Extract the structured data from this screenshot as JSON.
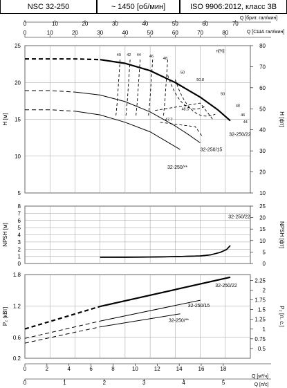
{
  "header": {
    "model": "NSC 32-250",
    "speed": "~ 1450 [об/мин]",
    "standard": "ISO 9906:2012, класс 3B"
  },
  "chart_data": [
    {
      "type": "line",
      "name": "top-secondary-axis",
      "axes": {
        "q_us_top": {
          "label": "Q [США гал/мин]",
          "range": [
            0,
            90
          ],
          "ticks": [
            0,
            10,
            20,
            30,
            40,
            50,
            60,
            70,
            80
          ]
        },
        "q_uk_top": {
          "label": "Q [брит. гал/мин]",
          "range": [
            0,
            75
          ],
          "ticks": [
            0,
            10,
            20,
            30,
            40,
            50,
            60,
            70
          ]
        }
      }
    },
    {
      "type": "line",
      "name": "head-curves",
      "xlabel": "",
      "ylabel": "H [м]",
      "ylabel_right": "H [фт]",
      "xlim": [
        0,
        90
      ],
      "ylim": [
        5,
        25
      ],
      "ylim_right": [
        10,
        80
      ],
      "yticks": [
        5,
        10,
        15,
        20,
        25
      ],
      "yticks_right": [
        10,
        20,
        30,
        40,
        50,
        60,
        70,
        80
      ],
      "series": [
        {
          "name": "32-250/22",
          "dashed_until": 30,
          "x": [
            0,
            20,
            30,
            40,
            50,
            60,
            70,
            77,
            82
          ],
          "y": [
            23.2,
            23.2,
            23.1,
            22.6,
            21.6,
            20.0,
            18.0,
            16.3,
            14.8
          ]
        },
        {
          "name": "32-250/15",
          "dashed_until": 20,
          "x": [
            0,
            10,
            20,
            30,
            40,
            50,
            60,
            65,
            70
          ],
          "y": [
            18.9,
            18.9,
            18.7,
            18.3,
            17.4,
            16.0,
            14.1,
            13.0,
            11.8
          ]
        },
        {
          "name": "32-250/**",
          "dashed_until": 20,
          "x": [
            0,
            10,
            20,
            30,
            40,
            50,
            60,
            62
          ],
          "y": [
            16.3,
            16.3,
            16.1,
            15.6,
            14.6,
            13.3,
            11.3,
            10.9
          ]
        }
      ],
      "efficiency_labels": [
        "40",
        "42",
        "44",
        "46",
        "48",
        "50",
        "50.8",
        "50",
        "48",
        "46",
        "44",
        "48.5",
        "47.7"
      ],
      "marker": "n[%]"
    },
    {
      "type": "line",
      "name": "npsh-curve",
      "ylabel": "NPSH [м]",
      "ylabel_right": "NPSH [фт]",
      "ylim": [
        0,
        8
      ],
      "yticks": [
        0,
        1,
        2,
        3,
        4,
        5,
        6,
        7,
        8
      ],
      "ylim_right": [
        0,
        25
      ],
      "yticks_right": [
        0,
        5,
        10,
        15,
        20,
        25
      ],
      "series": [
        {
          "name": "32-250/22",
          "x": [
            30,
            40,
            50,
            60,
            70,
            74,
            78,
            80.5,
            82
          ],
          "y": [
            0.87,
            0.88,
            0.9,
            0.95,
            1.05,
            1.2,
            1.55,
            1.95,
            2.5
          ]
        }
      ]
    },
    {
      "type": "line",
      "name": "power-curves",
      "ylabel": "P₂ [кВт]",
      "ylabel_right": "P₂ [л. с.]",
      "ylim": [
        0.2,
        1.8
      ],
      "yticks": [
        0.2,
        0.6,
        1.2,
        1.8
      ],
      "ylim_right": [
        0.25,
        2.4
      ],
      "yticks_right": [
        0.5,
        0.75,
        1.0,
        1.25,
        1.5,
        1.75,
        2.0,
        2.25
      ],
      "series": [
        {
          "name": "32-250/22",
          "dashed_until": 30,
          "x": [
            0,
            30,
            82
          ],
          "y": [
            0.76,
            1.19,
            1.75
          ]
        },
        {
          "name": "32-250/15",
          "dashed_until": 30,
          "x": [
            0,
            30,
            70
          ],
          "y": [
            0.58,
            0.91,
            1.31
          ]
        },
        {
          "name": "32-250/**",
          "dashed_until": 30,
          "x": [
            0,
            30,
            62
          ],
          "y": [
            0.49,
            0.8,
            1.05
          ]
        }
      ]
    },
    {
      "type": "line",
      "name": "bottom-axes",
      "axes": {
        "q_m3h": {
          "label": "Q [м³/ч]",
          "ticks": [
            0,
            2,
            4,
            6,
            8,
            10,
            12,
            14,
            16,
            18
          ]
        },
        "q_ls": {
          "label": "Q [л/с]",
          "ticks": [
            0,
            1,
            2,
            3,
            4,
            5
          ]
        }
      }
    }
  ]
}
